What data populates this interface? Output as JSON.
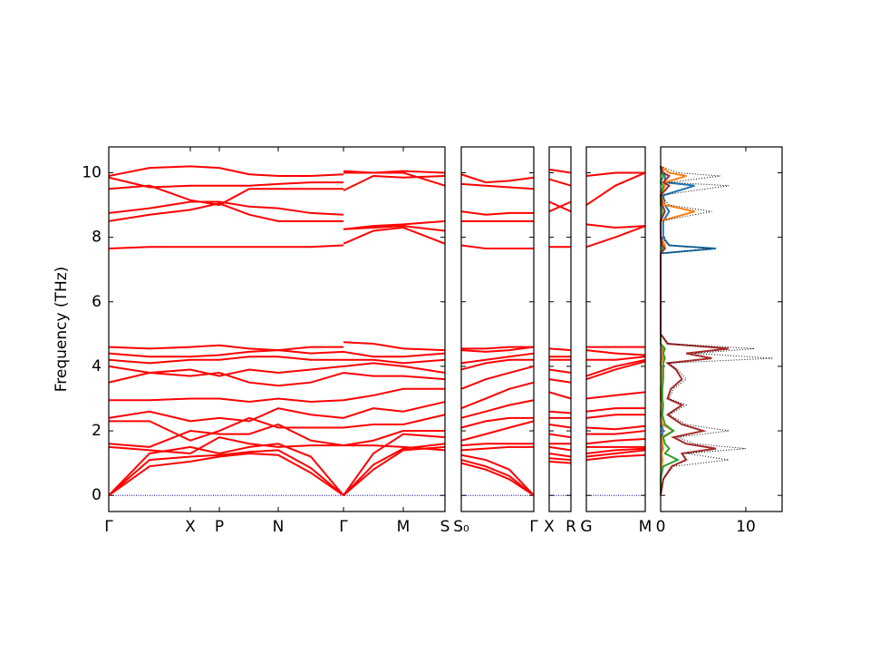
{
  "chart_data": [
    {
      "type": "band",
      "ylabel": "Frequency (THz)",
      "color": "#ff0000",
      "zero_line_color": "#00008b",
      "ylim": [
        -0.5,
        10.8
      ],
      "yticks": [
        0,
        2,
        4,
        6,
        8,
        10
      ],
      "xlim": [
        0,
        3.71
      ],
      "xticks": [
        {
          "value": 0,
          "label": "Γ"
        },
        {
          "value": 0.9,
          "label": "X"
        },
        {
          "value": 1.22,
          "label": "P"
        },
        {
          "value": 1.87,
          "label": "N"
        },
        {
          "value": 2.59,
          "label": "Γ"
        },
        {
          "value": 3.25,
          "label": "M"
        },
        {
          "value": 3.71,
          "label": "S"
        }
      ],
      "x": [
        0,
        0.45,
        0.9,
        1.22,
        1.55,
        1.87,
        2.23,
        2.59,
        2.59,
        2.59,
        2.92,
        3.25,
        3.71
      ],
      "series": [
        {
          "values": [
            0,
            0.9,
            1.05,
            1.2,
            1.3,
            1.25,
            0.7,
            0,
            null,
            0,
            0.8,
            1.4,
            1.5
          ]
        },
        {
          "values": [
            0,
            1.1,
            1.2,
            1.25,
            1.35,
            1.4,
            0.85,
            0,
            null,
            0,
            0.95,
            1.45,
            1.6
          ]
        },
        {
          "values": [
            0,
            1.3,
            1.5,
            1.3,
            1.5,
            1.6,
            1.2,
            0,
            null,
            0,
            1.3,
            1.9,
            1.8
          ]
        },
        {
          "values": [
            1.5,
            1.4,
            1.3,
            1.8,
            1.6,
            1.5,
            1.55,
            1.55,
            null,
            1.55,
            1.55,
            1.5,
            1.4
          ]
        },
        {
          "values": [
            1.6,
            1.5,
            2.0,
            1.9,
            1.9,
            2.2,
            1.7,
            1.55,
            null,
            1.55,
            1.7,
            2.0,
            2.0
          ]
        },
        {
          "values": [
            2.3,
            2.3,
            1.7,
            2.0,
            2.4,
            2.1,
            2.1,
            2.1,
            null,
            2.1,
            2.2,
            2.2,
            2.5
          ]
        },
        {
          "values": [
            2.4,
            2.6,
            2.3,
            2.4,
            2.3,
            2.7,
            2.5,
            2.4,
            null,
            2.4,
            2.7,
            2.6,
            2.9
          ]
        },
        {
          "values": [
            2.95,
            2.95,
            3.0,
            3.0,
            2.9,
            3.0,
            2.9,
            2.95,
            null,
            2.95,
            3.1,
            3.3,
            3.3
          ]
        },
        {
          "values": [
            3.5,
            3.8,
            3.7,
            3.8,
            3.5,
            3.4,
            3.5,
            3.8,
            null,
            3.8,
            3.7,
            3.7,
            3.6
          ]
        },
        {
          "values": [
            4.0,
            3.8,
            3.9,
            3.7,
            3.9,
            3.8,
            3.9,
            4.0,
            null,
            4.0,
            4.1,
            4.0,
            3.8
          ]
        },
        {
          "values": [
            4.2,
            4.1,
            4.2,
            4.2,
            4.3,
            4.3,
            4.2,
            4.2,
            null,
            4.2,
            4.2,
            4.1,
            4.2
          ]
        },
        {
          "values": [
            4.4,
            4.3,
            4.3,
            4.35,
            4.45,
            4.5,
            4.4,
            4.45,
            null,
            4.45,
            4.3,
            4.3,
            4.4
          ]
        },
        {
          "values": [
            4.6,
            4.55,
            4.6,
            4.65,
            4.55,
            4.5,
            4.6,
            4.6,
            null,
            4.75,
            4.7,
            4.55,
            4.5
          ]
        },
        {
          "values": [
            7.65,
            7.7,
            7.7,
            7.7,
            7.7,
            7.7,
            7.7,
            7.75,
            null,
            7.8,
            8.2,
            8.3,
            7.8
          ]
        },
        {
          "values": [
            8.5,
            8.7,
            8.85,
            9.05,
            8.7,
            8.5,
            8.5,
            8.5,
            null,
            8.25,
            8.3,
            8.35,
            8.2
          ]
        },
        {
          "values": [
            8.75,
            8.9,
            9.1,
            9.1,
            8.95,
            8.9,
            8.75,
            8.7,
            null,
            8.25,
            8.35,
            8.4,
            8.5
          ]
        },
        {
          "values": [
            9.5,
            9.6,
            9.15,
            9.0,
            9.5,
            9.5,
            9.5,
            9.5,
            null,
            9.45,
            9.9,
            9.85,
            9.9
          ]
        },
        {
          "values": [
            9.85,
            9.55,
            9.6,
            9.6,
            9.6,
            9.65,
            9.7,
            9.7,
            null,
            10.0,
            10.0,
            10.0,
            9.6
          ]
        },
        {
          "values": [
            9.9,
            10.15,
            10.2,
            10.15,
            9.95,
            9.9,
            9.9,
            9.95,
            null,
            10.05,
            10.0,
            10.05,
            10.0
          ]
        }
      ]
    },
    {
      "type": "band",
      "color": "#ff0000",
      "ylim": [
        -0.5,
        10.8
      ],
      "xlim": [
        0,
        0.8
      ],
      "xticks": [
        {
          "value": 0,
          "label": "S₀"
        },
        {
          "value": 0.8,
          "label": "Γ"
        }
      ],
      "x": [
        0,
        0.27,
        0.53,
        0.8
      ],
      "series": [
        {
          "values": [
            1.0,
            0.8,
            0.5,
            0
          ]
        },
        {
          "values": [
            1.1,
            0.9,
            0.6,
            0
          ]
        },
        {
          "values": [
            1.25,
            1.1,
            0.8,
            0
          ]
        },
        {
          "values": [
            1.4,
            1.45,
            1.5,
            1.5
          ]
        },
        {
          "values": [
            1.55,
            1.6,
            1.6,
            1.6
          ]
        },
        {
          "values": [
            1.7,
            1.9,
            2.1,
            2.3
          ]
        },
        {
          "values": [
            2.1,
            2.3,
            2.4,
            2.4
          ]
        },
        {
          "values": [
            2.4,
            2.6,
            2.8,
            2.95
          ]
        },
        {
          "values": [
            2.7,
            3.0,
            3.3,
            3.5
          ]
        },
        {
          "values": [
            3.3,
            3.6,
            3.8,
            4.0
          ]
        },
        {
          "values": [
            3.9,
            4.1,
            4.2,
            4.2
          ]
        },
        {
          "values": [
            4.1,
            4.2,
            4.3,
            4.4
          ]
        },
        {
          "values": [
            4.5,
            4.45,
            4.5,
            4.6
          ]
        },
        {
          "values": [
            4.55,
            4.55,
            4.6,
            4.6
          ]
        },
        {
          "values": [
            7.75,
            7.65,
            7.65,
            7.65
          ]
        },
        {
          "values": [
            8.5,
            8.5,
            8.5,
            8.5
          ]
        },
        {
          "values": [
            8.8,
            8.7,
            8.75,
            8.75
          ]
        },
        {
          "values": [
            9.65,
            9.6,
            9.55,
            9.5
          ]
        },
        {
          "values": [
            9.95,
            9.7,
            9.75,
            9.85
          ]
        }
      ]
    },
    {
      "type": "band",
      "color": "#ff0000",
      "ylim": [
        -0.5,
        10.8
      ],
      "xlim": [
        0,
        0.24
      ],
      "xticks": [
        {
          "value": 0,
          "label": "X"
        },
        {
          "value": 0.24,
          "label": "R"
        }
      ],
      "x": [
        0,
        0.24
      ],
      "series": [
        {
          "values": [
            1.05,
            1.0
          ]
        },
        {
          "values": [
            1.15,
            1.1
          ]
        },
        {
          "values": [
            1.3,
            1.2
          ]
        },
        {
          "values": [
            1.5,
            1.4
          ]
        },
        {
          "values": [
            1.6,
            1.6
          ]
        },
        {
          "values": [
            1.9,
            1.8
          ]
        },
        {
          "values": [
            2.2,
            2.1
          ]
        },
        {
          "values": [
            2.4,
            2.4
          ]
        },
        {
          "values": [
            2.6,
            2.55
          ]
        },
        {
          "values": [
            3.2,
            3.0
          ]
        },
        {
          "values": [
            3.6,
            3.5
          ]
        },
        {
          "values": [
            3.9,
            3.8
          ]
        },
        {
          "values": [
            4.2,
            4.2
          ]
        },
        {
          "values": [
            4.3,
            4.3
          ]
        },
        {
          "values": [
            4.55,
            4.5
          ]
        },
        {
          "values": [
            7.7,
            7.7
          ]
        },
        {
          "values": [
            8.8,
            9.1
          ]
        },
        {
          "values": [
            9.1,
            8.8
          ]
        },
        {
          "values": [
            9.8,
            9.6
          ]
        },
        {
          "values": [
            10.1,
            10.0
          ]
        }
      ]
    },
    {
      "type": "band",
      "color": "#ff0000",
      "ylim": [
        -0.5,
        10.8
      ],
      "xlim": [
        0,
        0.65
      ],
      "xticks": [
        {
          "value": 0,
          "label": "G"
        },
        {
          "value": 0.65,
          "label": "M"
        }
      ],
      "x": [
        0,
        0.32,
        0.65
      ],
      "series": [
        {
          "values": [
            1.1,
            1.2,
            1.25
          ]
        },
        {
          "values": [
            1.2,
            1.3,
            1.4
          ]
        },
        {
          "values": [
            1.3,
            1.4,
            1.45
          ]
        },
        {
          "values": [
            1.5,
            1.5,
            1.5
          ]
        },
        {
          "values": [
            1.6,
            1.7,
            1.75
          ]
        },
        {
          "values": [
            1.9,
            1.9,
            2.0
          ]
        },
        {
          "values": [
            2.1,
            2.05,
            2.15
          ]
        },
        {
          "values": [
            2.4,
            2.5,
            2.5
          ]
        },
        {
          "values": [
            2.6,
            2.7,
            2.7
          ]
        },
        {
          "values": [
            3.0,
            3.1,
            3.2
          ]
        },
        {
          "values": [
            3.6,
            3.9,
            4.15
          ]
        },
        {
          "values": [
            3.7,
            4.0,
            4.2
          ]
        },
        {
          "values": [
            4.2,
            4.2,
            4.3
          ]
        },
        {
          "values": [
            4.5,
            4.4,
            4.35
          ]
        },
        {
          "values": [
            4.6,
            4.6,
            4.6
          ]
        },
        {
          "values": [
            7.7,
            8.0,
            8.35
          ]
        },
        {
          "values": [
            8.4,
            8.3,
            8.35
          ]
        },
        {
          "values": [
            9.0,
            9.6,
            10.0
          ]
        },
        {
          "values": [
            9.9,
            10.0,
            10.0
          ]
        }
      ]
    },
    {
      "type": "dos",
      "ylim": [
        -0.5,
        10.8
      ],
      "xlim": [
        0,
        14.26
      ],
      "xticks": [
        0,
        10
      ],
      "frequencies": [
        0,
        0.5,
        0.9,
        1.1,
        1.3,
        1.45,
        1.6,
        1.8,
        2.0,
        2.2,
        2.5,
        2.8,
        3.0,
        3.3,
        3.6,
        3.9,
        4.1,
        4.25,
        4.4,
        4.55,
        4.7,
        5.0,
        7.5,
        7.65,
        7.75,
        8.0,
        8.5,
        8.8,
        9.0,
        9.3,
        9.6,
        9.7,
        9.9,
        10.0,
        10.2
      ],
      "series": [
        {
          "color": "#000000",
          "style": "dotted",
          "values": [
            0,
            0.3,
            1.5,
            8,
            3,
            10,
            4,
            2,
            8,
            3,
            1,
            3,
            1,
            1.5,
            3,
            2,
            1,
            13.2,
            4,
            11,
            1,
            0,
            0,
            6,
            1,
            0,
            0,
            6,
            1,
            0,
            8,
            1,
            7,
            2,
            0
          ]
        },
        {
          "color": "#1f77b4",
          "values": [
            0,
            0,
            0.1,
            0.2,
            0.1,
            0.2,
            0.2,
            0.1,
            0.3,
            0.1,
            0,
            0.1,
            0,
            0,
            0.1,
            0.1,
            0,
            0.2,
            0.1,
            0.2,
            0,
            0,
            0,
            6.5,
            1,
            0.3,
            0.3,
            1,
            0.5,
            0.3,
            4,
            0.5,
            0.5,
            0.3,
            0
          ]
        },
        {
          "color": "#ff7f0e",
          "values": [
            0,
            0,
            0.1,
            0.2,
            0.1,
            0.3,
            0.2,
            0.1,
            1.5,
            0.2,
            0,
            0.1,
            0,
            0,
            0.1,
            0.1,
            0,
            0.3,
            0.1,
            0.3,
            0,
            0,
            0,
            0.5,
            0.5,
            0,
            0,
            4,
            0.5,
            0,
            0.5,
            0.5,
            3,
            1,
            0
          ]
        },
        {
          "color": "#2ca02c",
          "values": [
            0,
            0,
            0.3,
            2,
            0.5,
            1,
            0.5,
            0.3,
            1.5,
            0.5,
            0.2,
            0.3,
            0.2,
            0.2,
            0.3,
            0.3,
            0.3,
            0.5,
            0.3,
            0.5,
            0,
            0,
            0,
            0.2,
            0.1,
            0,
            0,
            0.2,
            0,
            0,
            0.3,
            0,
            0.3,
            0.1,
            0
          ]
        },
        {
          "color": "#a52a2a",
          "values": [
            0,
            0.3,
            1.3,
            3,
            2.5,
            6.5,
            3,
            1.5,
            5,
            2.5,
            0.8,
            2.5,
            0.8,
            1.2,
            2.5,
            1.8,
            0.8,
            6,
            3,
            8,
            0.8,
            0,
            0,
            0.5,
            0.2,
            0,
            0,
            0.5,
            0.2,
            0,
            1,
            0.3,
            1,
            0.3,
            0
          ]
        }
      ]
    }
  ]
}
